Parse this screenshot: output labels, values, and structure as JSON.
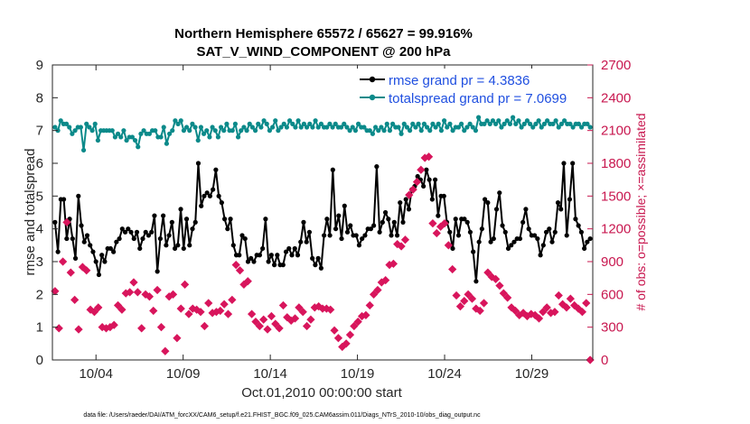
{
  "chart_data": {
    "type": "line",
    "title": "Northern Hemisphere 65572 / 65627 = 99.916%",
    "subtitle": "SAT_V_WIND_COMPONENT @ 200 hPa",
    "xlabel": "Oct.01,2010 00:00:00 start",
    "ylabel_left": "rmse and totalspread",
    "ylabel_right": "# of obs: o=possible; ×=assimilated",
    "footnote": "data file: /Users/raeder/DAI/ATM_forcXX/CAM6_setup/f.e21.FHIST_BGC.f09_025.CAM6assim.011/Diags_NTrS_2010-10/obs_diag_output.nc",
    "x_range": [
      1.5,
      32.5
    ],
    "ylim_left": [
      0,
      9
    ],
    "ylim_right": [
      0,
      2700
    ],
    "left_ticks": [
      "0",
      "1",
      "2",
      "3",
      "4",
      "5",
      "6",
      "7",
      "8",
      "9"
    ],
    "right_ticks": [
      "0",
      "300",
      "600",
      "900",
      "1200",
      "1500",
      "1800",
      "2100",
      "2400",
      "2700"
    ],
    "x_tick_values": [
      4,
      9,
      14,
      19,
      24,
      29
    ],
    "x_tick_labels": [
      "10/04",
      "10/09",
      "10/14",
      "10/19",
      "10/24",
      "10/29"
    ],
    "colors": {
      "rmse": "#000000",
      "spread": "#0b8a8a",
      "obs": "#d8155c",
      "legend_text": "#1f4fe0",
      "right_axis": "#c8174f"
    },
    "series": [
      {
        "name": "rmse grand pr = 4.3836",
        "axis": "left",
        "values": [
          4.2,
          3.3,
          4.9,
          4.9,
          3.7,
          4.3,
          3.7,
          3.1,
          5.0,
          4.1,
          3.6,
          3.8,
          3.5,
          3.3,
          3.0,
          2.6,
          3.2,
          3.0,
          3.4,
          3.4,
          3.3,
          3.6,
          3.7,
          4.0,
          3.9,
          4.0,
          3.9,
          3.7,
          3.9,
          3.4,
          3.7,
          3.9,
          3.8,
          3.9,
          4.4,
          2.7,
          3.7,
          4.4,
          3.5,
          3.8,
          4.2,
          3.4,
          3.5,
          4.6,
          3.4,
          4.3,
          3.5,
          4.0,
          4.2,
          6.0,
          4.7,
          5.0,
          5.1,
          5.0,
          5.2,
          5.8,
          5.0,
          4.8,
          4.3,
          4.0,
          4.3,
          3.5,
          3.2,
          3.2,
          3.8,
          3.7,
          3.0,
          3.1,
          3.0,
          3.2,
          3.2,
          3.4,
          4.3,
          3.0,
          3.2,
          2.9,
          3.2,
          2.9,
          2.9,
          3.3,
          3.4,
          3.2,
          3.4,
          3.2,
          3.6,
          4.2,
          3.6,
          3.9,
          3.1,
          2.9,
          3.1,
          2.8,
          3.8,
          4.3,
          3.8,
          5.8,
          4.0,
          4.4,
          3.7,
          4.7,
          3.9,
          4.1,
          3.8,
          3.8,
          3.5,
          3.7,
          3.8,
          4.0,
          4.0,
          4.1,
          5.9,
          3.9,
          4.2,
          4.5,
          4.3,
          3.8,
          4.2,
          3.8,
          4.8,
          4.2,
          4.9,
          4.6,
          5.2,
          5.3,
          5.6,
          5.5,
          5.3,
          5.8,
          5.5,
          4.9,
          5.5,
          4.4,
          5.0,
          5.0,
          4.2,
          3.9,
          3.4,
          4.3,
          3.8,
          4.3,
          4.3,
          4.2,
          3.9,
          3.3,
          2.4,
          3.6,
          4.0,
          4.9,
          4.8,
          3.6,
          3.7,
          4.6,
          5.1,
          4.1,
          3.9,
          3.4,
          3.5,
          3.6,
          3.7,
          3.7,
          4.2,
          4.6,
          4.0,
          3.8,
          3.8,
          3.7,
          3.2,
          3.5,
          3.9,
          4.0,
          3.6,
          3.9,
          4.8,
          4.6,
          6.0,
          3.8,
          4.9,
          6.0,
          4.3,
          4.1,
          3.9,
          3.4,
          3.6,
          3.7
        ]
      },
      {
        "name": "totalspread grand pr = 7.0699",
        "axis": "left",
        "values": [
          7.1,
          7.0,
          7.3,
          7.2,
          7.2,
          7.1,
          6.9,
          7.0,
          7.1,
          7.1,
          6.4,
          7.2,
          7.1,
          7.0,
          7.2,
          6.7,
          7.0,
          7.0,
          7.0,
          7.0,
          7.0,
          6.8,
          6.9,
          6.8,
          7.0,
          6.7,
          6.8,
          6.8,
          6.7,
          6.5,
          6.9,
          7.0,
          6.9,
          6.9,
          7.0,
          7.0,
          6.8,
          6.8,
          7.1,
          6.6,
          6.9,
          7.0,
          7.3,
          7.2,
          7.3,
          7.0,
          7.1,
          7.0,
          7.2,
          7.1,
          6.7,
          7.1,
          6.9,
          7.0,
          6.8,
          7.1,
          7.0,
          6.8,
          7.1,
          7.0,
          7.2,
          7.0,
          7.0,
          7.2,
          6.8,
          7.0,
          7.1,
          7.0,
          7.2,
          7.1,
          7.0,
          7.2,
          7.1,
          7.3,
          7.2,
          7.0,
          7.1,
          7.3,
          7.0,
          7.1,
          7.2,
          7.1,
          7.3,
          7.2,
          7.1,
          7.3,
          7.1,
          7.2,
          7.1,
          7.2,
          7.1,
          7.3,
          7.1,
          7.2,
          7.1,
          7.1,
          7.2,
          7.1,
          7.2,
          7.1,
          7.1,
          7.2,
          7.1,
          7.0,
          7.1,
          7.0,
          7.2,
          7.1,
          7.1,
          7.0,
          7.0,
          6.9,
          7.1,
          7.0,
          7.1,
          7.0,
          7.2,
          7.0,
          7.2,
          7.1,
          7.1,
          6.9,
          7.2,
          7.1,
          7.0,
          7.2,
          7.1,
          7.2,
          7.0,
          7.2,
          7.1,
          7.0,
          7.2,
          7.1,
          7.2,
          7.0,
          7.3,
          7.1,
          7.2,
          7.0,
          7.1,
          7.1,
          7.2,
          7.0,
          7.1,
          7.2,
          7.1,
          7.0,
          7.4,
          7.2,
          7.2,
          7.3,
          7.2,
          7.3,
          7.2,
          7.3,
          7.1,
          7.2,
          7.3,
          7.2,
          7.4,
          7.2,
          7.3,
          7.1,
          7.2,
          7.3,
          7.2,
          7.1,
          7.2,
          7.3,
          7.1,
          7.2,
          7.3,
          7.2,
          7.2,
          7.3,
          7.1,
          7.2,
          7.3,
          7.2,
          7.2,
          7.1,
          7.2,
          7.2,
          7.1,
          7.2,
          7.2,
          7.1
        ]
      },
      {
        "name": "assimilated",
        "axis": "right",
        "marker": "x",
        "values": [
          630,
          290,
          900,
          1260,
          800,
          550,
          280,
          850,
          820,
          460,
          440,
          480,
          300,
          290,
          300,
          320,
          500,
          460,
          610,
          620,
          710,
          620,
          290,
          600,
          580,
          450,
          640,
          300,
          80,
          580,
          600,
          200,
          470,
          690,
          420,
          470,
          460,
          440,
          310,
          520,
          430,
          440,
          450,
          510,
          420,
          550,
          870,
          820,
          690,
          720,
          420,
          350,
          310,
          370,
          280,
          400,
          330,
          290,
          500,
          390,
          360,
          380,
          480,
          440,
          310,
          370,
          480,
          490,
          470,
          470,
          460,
          270,
          200,
          120,
          150,
          230,
          310,
          350,
          400,
          410,
          500,
          600,
          640,
          710,
          730,
          870,
          880,
          1060,
          1040,
          1100,
          1510,
          1560,
          1630,
          1740,
          1850,
          1860,
          1250,
          1160,
          1220,
          1250,
          1050,
          830,
          590,
          490,
          540,
          600,
          560,
          470,
          450,
          520,
          800,
          760,
          740,
          680,
          610,
          570,
          480,
          450,
          410,
          430,
          400,
          420,
          410,
          380,
          440,
          480,
          430,
          440,
          590,
          510,
          480,
          560,
          500,
          470,
          440,
          520,
          0
        ]
      }
    ]
  }
}
